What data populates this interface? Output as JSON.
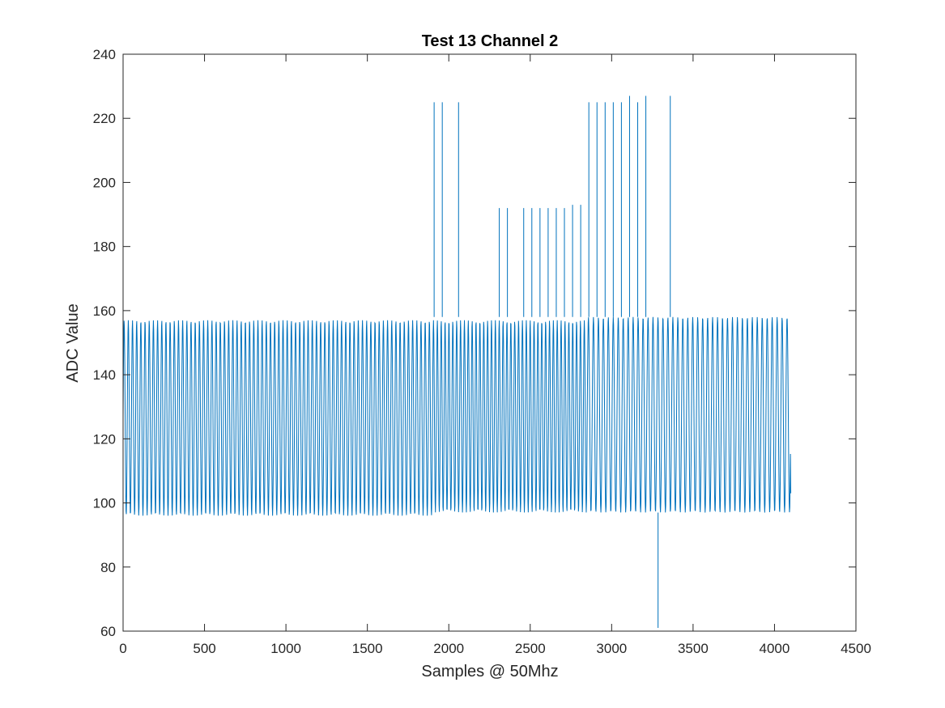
{
  "chart_data": {
    "type": "line",
    "title": "Test 13 Channel 2",
    "xlabel": "Samples @ 50Mhz",
    "ylabel": "ADC Value",
    "xlim": [
      0,
      4500
    ],
    "ylim": [
      60,
      240
    ],
    "xticks": [
      0,
      500,
      1000,
      1500,
      2000,
      2500,
      3000,
      3500,
      4000,
      4500
    ],
    "yticks": [
      60,
      80,
      100,
      120,
      140,
      160,
      180,
      200,
      220,
      240
    ],
    "grid": false,
    "line_color": "#0072BD",
    "series": [
      {
        "name": "",
        "n_samples": 4100,
        "baseline": {
          "high": 158,
          "low": 97
        },
        "oscillation_regions": [
          {
            "x_start": 0,
            "x_end": 1900,
            "cycles": 74,
            "high": 157,
            "low": 96
          },
          {
            "x_start": 1900,
            "x_end": 2850,
            "cycles": 40,
            "high": 157,
            "low": 97
          },
          {
            "x_start": 2850,
            "x_end": 4100,
            "cycles": 41,
            "high": 158,
            "low": 97
          }
        ],
        "spikes": [
          {
            "x": 1910,
            "y": 225
          },
          {
            "x": 1960,
            "y": 225
          },
          {
            "x": 2060,
            "y": 225
          },
          {
            "x": 2310,
            "y": 192
          },
          {
            "x": 2360,
            "y": 192
          },
          {
            "x": 2460,
            "y": 192
          },
          {
            "x": 2510,
            "y": 192
          },
          {
            "x": 2560,
            "y": 192
          },
          {
            "x": 2610,
            "y": 192
          },
          {
            "x": 2660,
            "y": 192
          },
          {
            "x": 2710,
            "y": 192
          },
          {
            "x": 2760,
            "y": 193
          },
          {
            "x": 2810,
            "y": 193
          },
          {
            "x": 2860,
            "y": 225
          },
          {
            "x": 2910,
            "y": 225
          },
          {
            "x": 2960,
            "y": 225
          },
          {
            "x": 3010,
            "y": 225
          },
          {
            "x": 3060,
            "y": 225
          },
          {
            "x": 3110,
            "y": 227
          },
          {
            "x": 3160,
            "y": 225
          },
          {
            "x": 3210,
            "y": 227
          },
          {
            "x": 3360,
            "y": 227
          },
          {
            "x": 3285,
            "y": 61
          }
        ],
        "end_value": 103
      }
    ]
  }
}
